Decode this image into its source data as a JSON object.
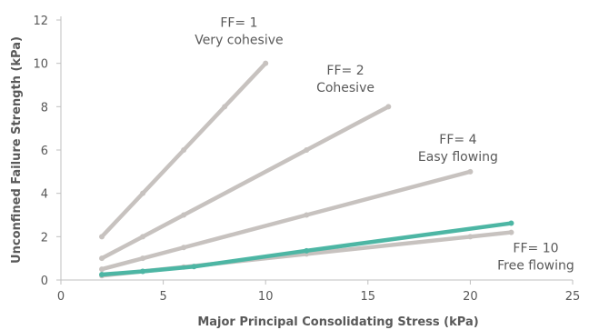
{
  "chart_data": {
    "type": "line",
    "title": "",
    "xlabel": "Major Principal Consolidating Stress (kPa)",
    "ylabel": "Unconfined Failure Strength (kPa)",
    "xlim": [
      0,
      25
    ],
    "ylim": [
      0,
      12
    ],
    "x_ticks": [
      0,
      5,
      10,
      15,
      20,
      25
    ],
    "y_ticks": [
      0,
      2,
      4,
      6,
      8,
      10,
      12
    ],
    "grid": false,
    "colors": {
      "reference": "#c7c2bf",
      "measured": "#4db6a4",
      "text": "#595959",
      "axis": "#bfbfbf"
    },
    "series": [
      {
        "style": "reference",
        "x": [
          2,
          4,
          6,
          8,
          10
        ],
        "y": [
          2,
          4,
          6,
          8,
          10
        ]
      },
      {
        "style": "reference",
        "x": [
          2,
          4,
          6,
          12,
          16
        ],
        "y": [
          1,
          2,
          3,
          6,
          8
        ]
      },
      {
        "style": "reference",
        "x": [
          2,
          4,
          6,
          12,
          20
        ],
        "y": [
          0.5,
          1,
          1.5,
          3,
          5
        ]
      },
      {
        "style": "reference",
        "x": [
          2,
          4,
          6,
          12,
          20,
          22
        ],
        "y": [
          0.2,
          0.4,
          0.6,
          1.2,
          2,
          2.2
        ]
      },
      {
        "style": "measured",
        "x": [
          2,
          4,
          6.5,
          12,
          22
        ],
        "y": [
          0.25,
          0.4,
          0.62,
          1.35,
          2.62
        ]
      }
    ],
    "annotations": [
      {
        "lines": [
          "FF= 1",
          "Very cohesive"
        ],
        "x": 8.7,
        "y": 11.9
      },
      {
        "lines": [
          "FF= 2",
          "Cohesive"
        ],
        "x": 13.9,
        "y": 9.7
      },
      {
        "lines": [
          "FF= 4",
          "Easy flowing"
        ],
        "x": 19.4,
        "y": 6.5
      },
      {
        "lines": [
          "FF= 10",
          "Free flowing"
        ],
        "x": 23.2,
        "y": 1.5
      }
    ]
  }
}
